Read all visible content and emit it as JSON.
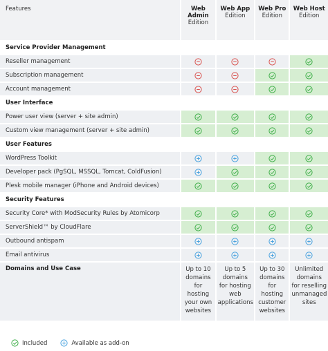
{
  "header": {
    "features": "Features",
    "columns": [
      {
        "name": "Web Admin",
        "edition": "Edition"
      },
      {
        "name": "Web App",
        "edition": "Edition"
      },
      {
        "name": "Web Pro",
        "edition": "Edition"
      },
      {
        "name": "Web Host",
        "edition": "Edition"
      }
    ]
  },
  "sections": [
    {
      "title": "Service Provider Management",
      "rows": [
        "Reseller management",
        "Subscription management",
        "Account management"
      ]
    },
    {
      "title": "User Interface",
      "rows": [
        "Power user view (server + site admin)",
        "Custom view management (server + site admin)"
      ]
    },
    {
      "title": "User Features",
      "rows": [
        "WordPress Toolkit",
        "Developer pack (PgSQL, MSSQL, Tomcat, ColdFusion)",
        "Plesk mobile manager (iPhone and Android devices)"
      ]
    },
    {
      "title": "Security Features",
      "rows": [
        "Security Core* with ModSecurity Rules by Atomicorp",
        "ServerShield™ by CloudFlare",
        "Outbound antispam",
        "Email antivirus"
      ]
    }
  ],
  "domains": {
    "title": "Domains and Use Case",
    "cells": [
      "Up to 10 domains for hosting your own websites",
      "Up to 5 domains for hosting web applications",
      "Up to 30 domains for hosting customer websites",
      "Unlimited domains for reselling unmanaged sites"
    ]
  },
  "legend": {
    "included": "Included",
    "addon": "Available as add-on"
  }
}
